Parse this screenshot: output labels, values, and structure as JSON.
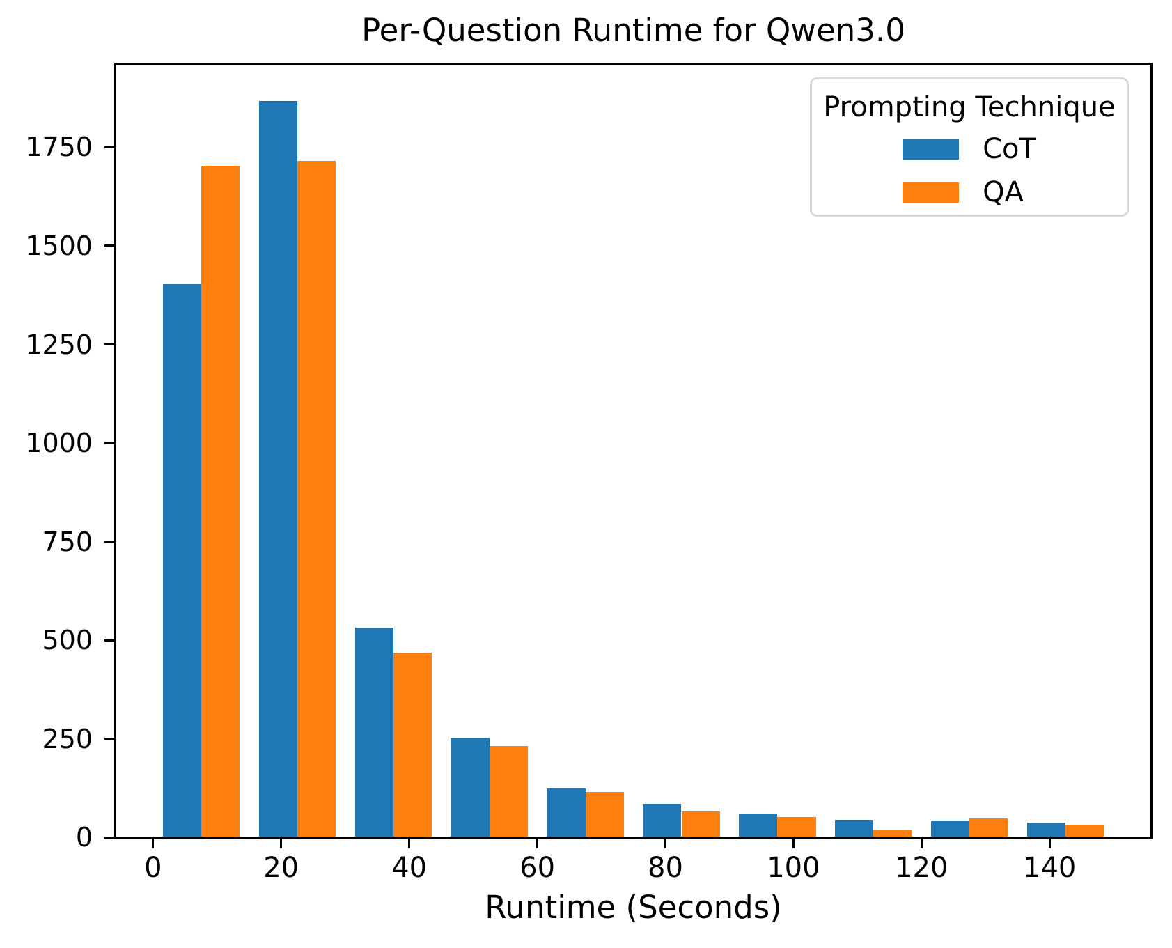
{
  "figure": {
    "title": "Per-Question Runtime for Qwen3.0",
    "background": "#ffffff"
  },
  "axes": {
    "xlabel": "Runtime (Seconds)",
    "x_tick_labels": [
      "0",
      "20",
      "40",
      "60",
      "80",
      "100",
      "120",
      "140"
    ],
    "x_tick_values": [
      0,
      20,
      40,
      60,
      80,
      100,
      120,
      140
    ],
    "y_tick_labels": [
      "0",
      "250",
      "500",
      "750",
      "1000",
      "1250",
      "1500",
      "1750"
    ],
    "y_tick_values": [
      0,
      250,
      500,
      750,
      1000,
      1250,
      1500,
      1750
    ],
    "xlim": [
      -5.85,
      155.85
    ],
    "ylim": [
      0,
      1961
    ],
    "spine_color": "#000000",
    "tick_color": "#000000",
    "grid": false
  },
  "legend": {
    "title": "Prompting Technique",
    "position": "upper right",
    "entries": [
      {
        "label": "CoT",
        "color": "#1f77b4"
      },
      {
        "label": "QA",
        "color": "#ff7f0e"
      }
    ]
  },
  "chart_data": {
    "type": "bar",
    "subtype": "grouped-histogram",
    "title": "Per-Question Runtime for Qwen3.0",
    "xlabel": "Runtime (Seconds)",
    "ylabel": "",
    "bin_edges": [
      0,
      15,
      30,
      45,
      60,
      75,
      90,
      105,
      120,
      135,
      150
    ],
    "categories": [
      "0-15",
      "15-30",
      "30-45",
      "45-60",
      "60-75",
      "75-90",
      "90-105",
      "105-120",
      "120-135",
      "135-150"
    ],
    "series": [
      {
        "name": "CoT",
        "color": "#1f77b4",
        "values": [
          1403,
          1868,
          532,
          253,
          124,
          85,
          60,
          44,
          42,
          37
        ]
      },
      {
        "name": "QA",
        "color": "#ff7f0e",
        "values": [
          1703,
          1715,
          468,
          232,
          115,
          66,
          51,
          18,
          48,
          32
        ]
      }
    ],
    "bar_width_units": 6,
    "group_start_offset_units": 1.5,
    "xlim": [
      -5.85,
      155.85
    ],
    "ylim": [
      0,
      1961
    ],
    "grid": false,
    "legend_position": "upper right"
  }
}
